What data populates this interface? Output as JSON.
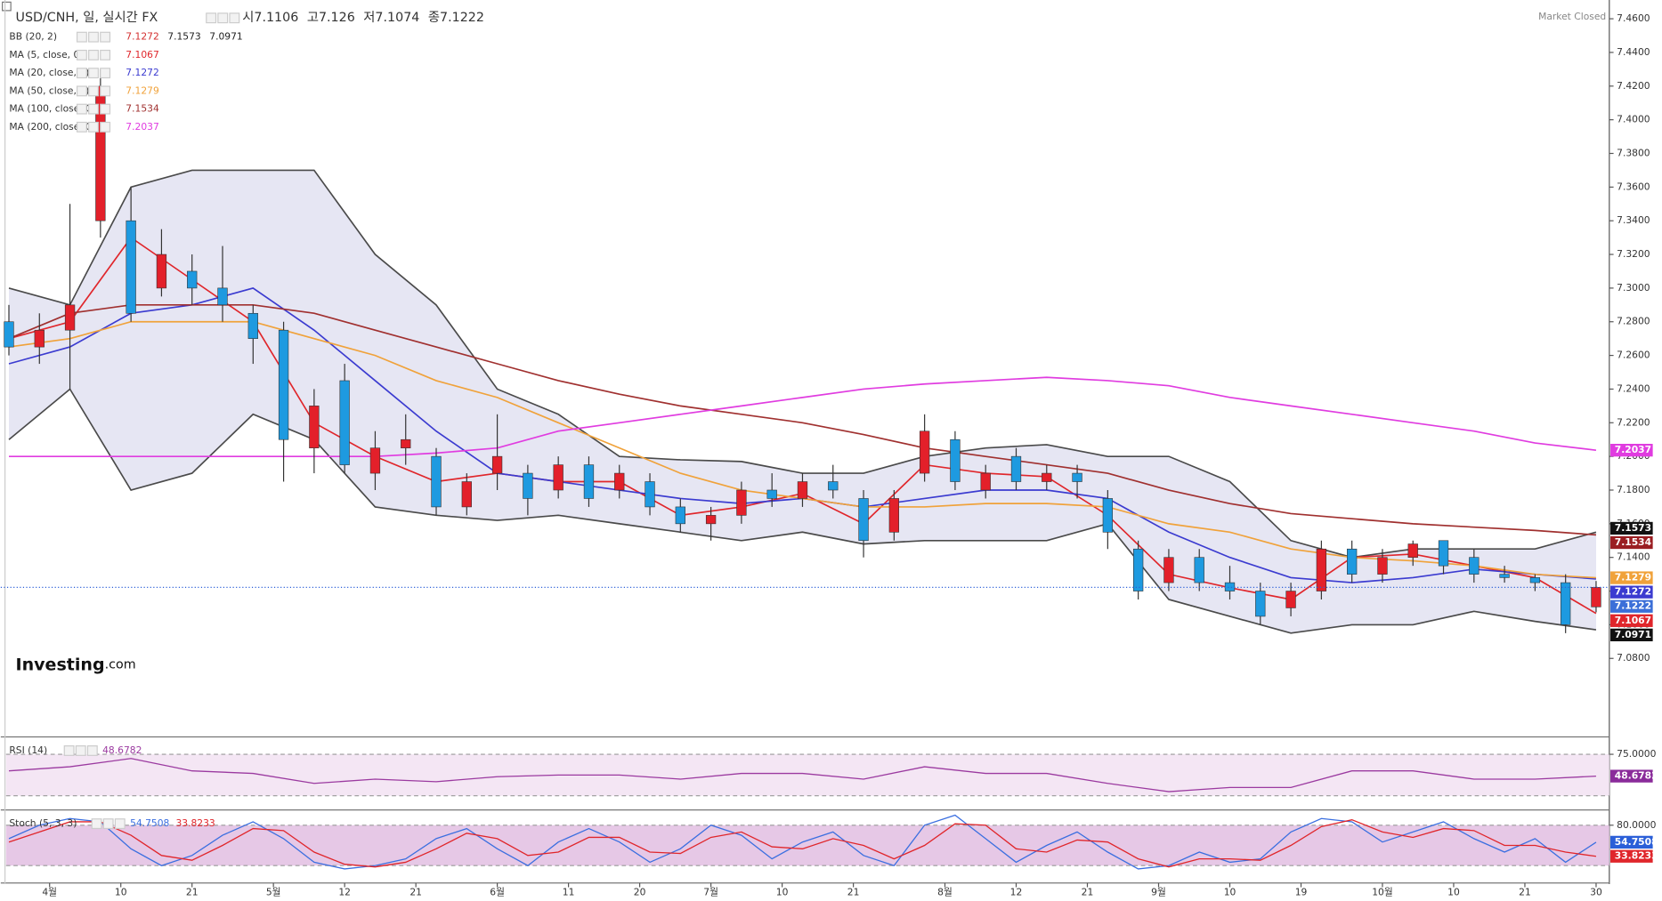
{
  "chart_data": {
    "type": "candlestick",
    "title": "USD/CNH, 일, 실시간 FX",
    "status": "Market Closed",
    "logo": {
      "name": "Investing",
      "suffix": ".com"
    },
    "quote": [
      {
        "label": "시",
        "value": 7.1106
      },
      {
        "label": "고",
        "value": 7.126
      },
      {
        "label": "저",
        "value": 7.1074
      },
      {
        "label": "종",
        "value": 7.1222
      }
    ],
    "up_color": "#e3202a",
    "down_color": "#1e9ae0",
    "x": [
      0,
      3,
      6,
      9,
      12,
      15,
      18,
      21,
      24,
      27,
      30,
      33,
      36,
      39,
      42,
      45,
      48,
      51,
      54,
      57,
      60,
      63,
      66,
      69,
      72,
      75,
      78,
      81,
      84,
      87,
      90,
      93,
      96,
      99,
      102,
      105,
      108,
      111,
      114,
      117,
      120,
      123,
      126,
      129,
      132,
      135,
      138,
      141,
      144,
      147,
      150,
      153,
      156
    ],
    "open": [
      7.28,
      7.265,
      7.275,
      7.34,
      7.34,
      7.3,
      7.31,
      7.3,
      7.285,
      7.275,
      7.205,
      7.245,
      7.19,
      7.205,
      7.2,
      7.17,
      7.19,
      7.19,
      7.18,
      7.195,
      7.18,
      7.185,
      7.17,
      7.16,
      7.165,
      7.18,
      7.175,
      7.185,
      7.175,
      7.155,
      7.19,
      7.21,
      7.18,
      7.2,
      7.185,
      7.19,
      7.175,
      7.145,
      7.125,
      7.14,
      7.125,
      7.12,
      7.11,
      7.12,
      7.145,
      7.13,
      7.14,
      7.15,
      7.14,
      7.13,
      7.128,
      7.125,
      7.1106
    ],
    "high": [
      7.29,
      7.285,
      7.35,
      7.43,
      7.36,
      7.335,
      7.32,
      7.325,
      7.29,
      7.28,
      7.24,
      7.255,
      7.215,
      7.225,
      7.205,
      7.19,
      7.225,
      7.195,
      7.2,
      7.2,
      7.195,
      7.19,
      7.175,
      7.17,
      7.185,
      7.19,
      7.19,
      7.195,
      7.18,
      7.18,
      7.225,
      7.215,
      7.195,
      7.205,
      7.195,
      7.195,
      7.18,
      7.15,
      7.145,
      7.145,
      7.135,
      7.125,
      7.125,
      7.15,
      7.15,
      7.145,
      7.15,
      7.15,
      7.145,
      7.135,
      7.13,
      7.13,
      7.126
    ],
    "low": [
      7.26,
      7.255,
      7.24,
      7.33,
      7.28,
      7.295,
      7.29,
      7.28,
      7.255,
      7.185,
      7.19,
      7.19,
      7.18,
      7.195,
      7.165,
      7.165,
      7.18,
      7.165,
      7.175,
      7.17,
      7.175,
      7.165,
      7.155,
      7.15,
      7.16,
      7.17,
      7.17,
      7.175,
      7.14,
      7.15,
      7.185,
      7.18,
      7.175,
      7.18,
      7.18,
      7.175,
      7.145,
      7.115,
      7.12,
      7.12,
      7.115,
      7.1,
      7.105,
      7.115,
      7.125,
      7.125,
      7.135,
      7.13,
      7.125,
      7.125,
      7.12,
      7.095,
      7.1074
    ],
    "close": [
      7.265,
      7.275,
      7.29,
      7.42,
      7.285,
      7.32,
      7.3,
      7.29,
      7.27,
      7.21,
      7.23,
      7.195,
      7.205,
      7.21,
      7.17,
      7.185,
      7.2,
      7.175,
      7.195,
      7.175,
      7.19,
      7.17,
      7.16,
      7.165,
      7.18,
      7.175,
      7.185,
      7.18,
      7.15,
      7.175,
      7.215,
      7.185,
      7.19,
      7.185,
      7.19,
      7.185,
      7.155,
      7.12,
      7.14,
      7.125,
      7.12,
      7.105,
      7.12,
      7.145,
      7.13,
      7.14,
      7.148,
      7.135,
      7.13,
      7.128,
      7.125,
      7.1,
      7.1222
    ],
    "xlim": [
      -0.8,
      157.3
    ],
    "xticks": [
      {
        "value": 4,
        "label": "4월"
      },
      {
        "value": 11,
        "label": "10"
      },
      {
        "value": 18,
        "label": "21"
      },
      {
        "value": 26,
        "label": "5월"
      },
      {
        "value": 33,
        "label": "12"
      },
      {
        "value": 40,
        "label": "21"
      },
      {
        "value": 48,
        "label": "6월"
      },
      {
        "value": 55,
        "label": "11"
      },
      {
        "value": 62,
        "label": "20"
      },
      {
        "value": 69,
        "label": "7월"
      },
      {
        "value": 76,
        "label": "10"
      },
      {
        "value": 83,
        "label": "21"
      },
      {
        "value": 92,
        "label": "8월"
      },
      {
        "value": 99,
        "label": "12"
      },
      {
        "value": 106,
        "label": "21"
      },
      {
        "value": 113,
        "label": "9월"
      },
      {
        "value": 120,
        "label": "10"
      },
      {
        "value": 127,
        "label": "19"
      },
      {
        "value": 135,
        "label": "10월"
      },
      {
        "value": 142,
        "label": "10"
      },
      {
        "value": 149,
        "label": "21"
      },
      {
        "value": 156,
        "label": "30"
      }
    ],
    "ylim": [
      7.034,
      7.468
    ],
    "yticks": [
      {
        "value": 7.08,
        "label": "7.0800"
      },
      {
        "value": 7.1,
        "label": "7.1000"
      },
      {
        "value": 7.12,
        "label": "7.1200"
      },
      {
        "value": 7.14,
        "label": "7.1400"
      },
      {
        "value": 7.16,
        "label": "7.1600"
      },
      {
        "value": 7.18,
        "label": "7.1800"
      },
      {
        "value": 7.2,
        "label": "7.2000"
      },
      {
        "value": 7.22,
        "label": "7.2200"
      },
      {
        "value": 7.24,
        "label": "7.2400"
      },
      {
        "value": 7.26,
        "label": "7.2600"
      },
      {
        "value": 7.28,
        "label": "7.2800"
      },
      {
        "value": 7.3,
        "label": "7.3000"
      },
      {
        "value": 7.32,
        "label": "7.3200"
      },
      {
        "value": 7.34,
        "label": "7.3400"
      },
      {
        "value": 7.36,
        "label": "7.3600"
      },
      {
        "value": 7.38,
        "label": "7.3800"
      },
      {
        "value": 7.4,
        "label": "7.4000"
      },
      {
        "value": 7.42,
        "label": "7.4200"
      },
      {
        "value": 7.44,
        "label": "7.4400"
      },
      {
        "value": 7.46,
        "label": "7.4600"
      }
    ],
    "grid": false,
    "line_x": [
      0,
      6,
      12,
      18,
      24,
      30,
      36,
      42,
      48,
      54,
      60,
      66,
      72,
      78,
      84,
      90,
      96,
      102,
      108,
      114,
      120,
      126,
      132,
      138,
      144,
      150,
      156
    ],
    "bands": {
      "name": "BB (20, 2)",
      "color": "#4a4a4a",
      "fill": "#e6e6f3",
      "readout": [
        7.1272,
        7.1573,
        7.0971
      ],
      "upper": [
        7.3,
        7.29,
        7.36,
        7.37,
        7.37,
        7.37,
        7.32,
        7.29,
        7.24,
        7.225,
        7.2,
        7.198,
        7.197,
        7.19,
        7.19,
        7.2,
        7.205,
        7.207,
        7.2,
        7.2,
        7.185,
        7.15,
        7.14,
        7.145,
        7.145,
        7.145,
        7.155
      ],
      "lower": [
        7.21,
        7.24,
        7.18,
        7.19,
        7.225,
        7.21,
        7.17,
        7.165,
        7.162,
        7.165,
        7.16,
        7.155,
        7.15,
        7.155,
        7.148,
        7.15,
        7.15,
        7.15,
        7.16,
        7.115,
        7.105,
        7.095,
        7.1,
        7.1,
        7.108,
        7.102,
        7.097
      ]
    },
    "overlays": [
      {
        "name": "MA (5, close, 0)",
        "color": "#e0262b",
        "readout": 7.1067,
        "values": [
          7.27,
          7.28,
          7.33,
          7.305,
          7.28,
          7.22,
          7.2,
          7.185,
          7.19,
          7.185,
          7.185,
          7.165,
          7.17,
          7.178,
          7.16,
          7.195,
          7.19,
          7.188,
          7.165,
          7.13,
          7.122,
          7.115,
          7.14,
          7.142,
          7.135,
          7.128,
          7.1067
        ]
      },
      {
        "name": "MA (20, close, 0)",
        "color": "#3b3bd0",
        "readout": 7.1272,
        "values": [
          7.255,
          7.265,
          7.285,
          7.29,
          7.3,
          7.275,
          7.245,
          7.215,
          7.19,
          7.185,
          7.18,
          7.175,
          7.172,
          7.175,
          7.17,
          7.175,
          7.18,
          7.18,
          7.175,
          7.155,
          7.14,
          7.128,
          7.125,
          7.128,
          7.133,
          7.13,
          7.1272
        ]
      },
      {
        "name": "MA (50, close, 0)",
        "color": "#f0a23a",
        "readout": 7.1279,
        "values": [
          7.265,
          7.27,
          7.28,
          7.28,
          7.28,
          7.27,
          7.26,
          7.245,
          7.235,
          7.22,
          7.205,
          7.19,
          7.18,
          7.175,
          7.17,
          7.17,
          7.172,
          7.172,
          7.17,
          7.16,
          7.155,
          7.145,
          7.14,
          7.138,
          7.135,
          7.13,
          7.1279
        ]
      },
      {
        "name": "MA (100, close, 0)",
        "color": "#a0302f",
        "readout": 7.1534,
        "values": [
          7.27,
          7.285,
          7.29,
          7.29,
          7.29,
          7.285,
          7.275,
          7.265,
          7.255,
          7.245,
          7.237,
          7.23,
          7.225,
          7.22,
          7.213,
          7.205,
          7.2,
          7.195,
          7.19,
          7.18,
          7.172,
          7.166,
          7.163,
          7.16,
          7.158,
          7.156,
          7.1534
        ]
      },
      {
        "name": "MA (200, close, 0)",
        "color": "#e03ce0",
        "readout": 7.2037,
        "values": [
          7.2,
          7.2,
          7.2,
          7.2,
          7.2,
          7.2,
          7.2,
          7.202,
          7.205,
          7.215,
          7.22,
          7.225,
          7.23,
          7.235,
          7.24,
          7.243,
          7.245,
          7.247,
          7.245,
          7.242,
          7.235,
          7.23,
          7.225,
          7.22,
          7.215,
          7.208,
          7.2037
        ]
      }
    ],
    "indicators": [
      {
        "name": "RSI (14)",
        "ylim": [
          9.2,
          94.7
        ],
        "yticks": [
          {
            "value": 75,
            "label": "75.0000"
          }
        ],
        "levels": [
          75,
          25
        ],
        "band_color": "#f4e6f4",
        "x": [
          0,
          6,
          12,
          18,
          24,
          30,
          36,
          42,
          48,
          54,
          60,
          66,
          72,
          78,
          84,
          90,
          96,
          102,
          108,
          114,
          120,
          126,
          132,
          138,
          144,
          150,
          156
        ],
        "series": [
          {
            "color": "#9b3aa0",
            "badge": "#8a2b9a",
            "values": [
              55,
              60,
              70,
              55,
              52,
              40,
              45,
              42,
              48,
              50,
              50,
              45,
              52,
              52,
              45,
              60,
              52,
              52,
              40,
              30,
              35,
              35,
              55,
              55,
              45,
              45,
              48.6782
            ]
          }
        ]
      },
      {
        "name": "Stoch (5, 3, 3)",
        "ylim": [
          -4.3,
          101.1
        ],
        "yticks": [
          {
            "value": 80,
            "label": "80.0000"
          }
        ],
        "levels": [
          80,
          20
        ],
        "band_color": "#e6c8e6",
        "x": [
          0,
          3,
          6,
          9,
          12,
          15,
          18,
          21,
          24,
          27,
          30,
          33,
          36,
          39,
          42,
          45,
          48,
          51,
          54,
          57,
          60,
          63,
          66,
          69,
          72,
          75,
          78,
          81,
          84,
          87,
          90,
          93,
          96,
          99,
          102,
          105,
          108,
          111,
          114,
          117,
          120,
          123,
          126,
          129,
          132,
          135,
          138,
          141,
          144,
          147,
          150,
          153,
          156
        ],
        "series": [
          {
            "color": "#3b6fe0",
            "badge": "#2b5fd8",
            "values": [
              60,
              80,
              90,
              85,
              45,
              20,
              35,
              65,
              85,
              60,
              25,
              15,
              20,
              30,
              60,
              75,
              45,
              20,
              55,
              75,
              55,
              25,
              45,
              80,
              65,
              30,
              55,
              70,
              35,
              20,
              80,
              95,
              60,
              25,
              50,
              70,
              40,
              15,
              20,
              40,
              25,
              30,
              70,
              90,
              85,
              55,
              70,
              85,
              60,
              40,
              60,
              25,
              54.7508
            ]
          },
          {
            "color": "#e0262b",
            "badge": "#e0262b",
            "values": [
              55,
              70,
              85,
              85,
              65,
              35,
              28,
              50,
              75,
              72,
              40,
              22,
              18,
              25,
              45,
              68,
              60,
              35,
              40,
              62,
              62,
              40,
              38,
              62,
              70,
              48,
              45,
              60,
              50,
              30,
              50,
              82,
              80,
              45,
              40,
              58,
              55,
              30,
              18,
              30,
              30,
              28,
              50,
              78,
              88,
              70,
              62,
              75,
              72,
              50,
              50,
              40,
              33.8233
            ]
          }
        ]
      }
    ]
  }
}
